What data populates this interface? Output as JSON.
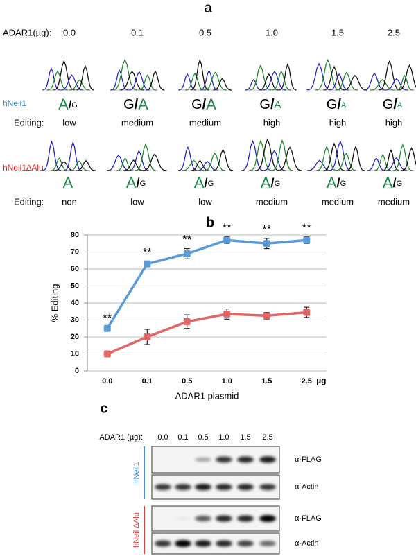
{
  "panel_a": {
    "label": "a",
    "dose_header": "ADAR1(µg):",
    "doses": [
      "0.0",
      "0.1",
      "0.5",
      "1.0",
      "1.5",
      "2.5"
    ],
    "rows": [
      {
        "construct": "hNeil1",
        "editing_header": "Editing:",
        "calls": [
          [
            "A",
            "/",
            "G"
          ],
          [
            "G",
            "/",
            "A"
          ],
          [
            "G",
            "/",
            "A"
          ],
          [
            "G",
            "/",
            "A"
          ],
          [
            "G",
            "/",
            "A"
          ],
          [
            "G",
            "/",
            "A"
          ]
        ],
        "editing": [
          "low",
          "medium",
          "medium",
          "high",
          "high",
          "high"
        ]
      },
      {
        "construct": "hNeil1∆Alu",
        "editing_header": "Editing:",
        "calls": [
          [
            "A"
          ],
          [
            "A",
            "/",
            "G"
          ],
          [
            "A",
            "/",
            "G"
          ],
          [
            "A",
            "/",
            "G"
          ],
          [
            "A",
            "/",
            "G"
          ],
          [
            "A",
            "/",
            "G"
          ]
        ],
        "editing": [
          "non",
          "low",
          "low",
          "medium",
          "medium",
          "medium"
        ]
      }
    ]
  },
  "chart_data": {
    "type": "line",
    "label": "b",
    "xlabel": "ADAR1 plasmid",
    "x_unit": "µg",
    "ylabel": "% Editing",
    "categories": [
      "0.0",
      "0.1",
      "0.5",
      "1.0",
      "1.5",
      "2.5"
    ],
    "ylim": [
      0,
      80
    ],
    "yticks": [
      0,
      10,
      20,
      30,
      40,
      50,
      60,
      70,
      80
    ],
    "grid": true,
    "series": [
      {
        "color": "#5b9bd5",
        "values": [
          25,
          63,
          69,
          77,
          75,
          77
        ],
        "errors": [
          1,
          1.5,
          3,
          2,
          3,
          2
        ],
        "annotations": [
          "**",
          "**",
          "**",
          "**",
          "**",
          "**"
        ]
      },
      {
        "color": "#e06666",
        "values": [
          10,
          20,
          29,
          33.5,
          32.5,
          34.5
        ],
        "errors": [
          1,
          4.5,
          4,
          3,
          2,
          3
        ]
      }
    ]
  },
  "panel_c": {
    "label": "c",
    "dose_header": "ADAR1 (µg):",
    "doses": [
      "0.0",
      "0.1",
      "0.5",
      "1.0",
      "1.5",
      "2.5"
    ],
    "groups": [
      {
        "construct": "hNeil1",
        "color": "#4a90d9",
        "blots": [
          "α-FLAG",
          "α-Actin"
        ]
      },
      {
        "construct": "hNeil ∆Alu",
        "color": "#e04040",
        "blots": [
          "α-FLAG",
          "α-Actin"
        ]
      }
    ]
  }
}
